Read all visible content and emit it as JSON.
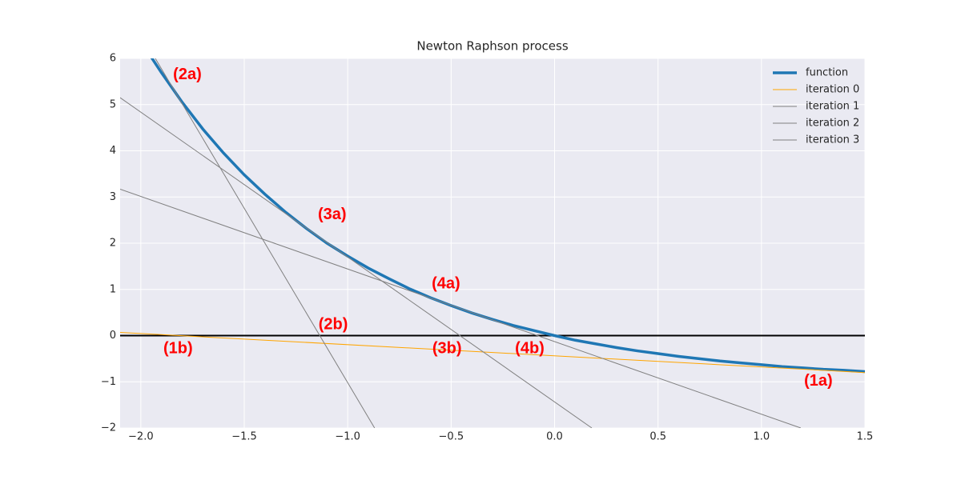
{
  "chart_data": {
    "type": "line",
    "title": "Newton Raphson process",
    "xlim": [
      -2.1,
      1.5
    ],
    "ylim": [
      -2,
      6
    ],
    "xticks": [
      {
        "value": -2.0,
        "label": "−2.0"
      },
      {
        "value": -1.5,
        "label": "−1.5"
      },
      {
        "value": -1.0,
        "label": "−1.0"
      },
      {
        "value": -0.5,
        "label": "−0.5"
      },
      {
        "value": 0.0,
        "label": "0.0"
      },
      0.5,
      {
        "value": 1.0,
        "label": "1.0"
      },
      1.5
    ],
    "yticks": [
      {
        "value": -2,
        "label": "−2"
      },
      {
        "value": -1,
        "label": "−1"
      },
      0,
      1,
      2,
      3,
      4,
      5,
      6
    ],
    "grid": true,
    "legend": "upper right",
    "axhline": 0,
    "series": [
      {
        "name": "function",
        "color": "#1f77b4",
        "x": [
          -1.95,
          -1.9,
          -1.8,
          -1.7,
          -1.6,
          -1.5,
          -1.4,
          -1.3,
          -1.2,
          -1.1,
          -1.0,
          -0.9,
          -0.8,
          -0.7,
          -0.6,
          -0.5,
          -0.4,
          -0.3,
          -0.2,
          -0.1,
          0.0,
          0.1,
          0.2,
          0.3,
          0.4,
          0.5,
          0.6,
          0.7,
          0.8,
          0.9,
          1.0,
          1.1,
          1.2,
          1.3,
          1.4,
          1.5
        ],
        "values": [
          6.03,
          5.69,
          5.05,
          4.47,
          3.95,
          3.48,
          3.06,
          2.67,
          2.32,
          2.0,
          1.72,
          1.46,
          1.23,
          1.01,
          0.82,
          0.65,
          0.49,
          0.35,
          0.22,
          0.11,
          0.0,
          -0.1,
          -0.18,
          -0.26,
          -0.33,
          -0.39,
          -0.45,
          -0.5,
          -0.55,
          -0.59,
          -0.63,
          -0.67,
          -0.7,
          -0.73,
          -0.75,
          -0.78
        ]
      },
      {
        "name": "iteration 0",
        "color": "#ffa500",
        "x": [
          -2.1,
          1.5
        ],
        "values": [
          0.07,
          -0.8
        ]
      },
      {
        "name": "iteration 1",
        "color": "#808080",
        "x": [
          -1.93,
          -0.87
        ],
        "values": [
          6,
          -2
        ]
      },
      {
        "name": "iteration 2",
        "color": "#808080",
        "x": [
          -2.1,
          0.18
        ],
        "values": [
          5.15,
          -2
        ]
      },
      {
        "name": "iteration 3",
        "color": "#808080",
        "x": [
          -2.1,
          1.19
        ],
        "values": [
          3.17,
          -2
        ]
      }
    ],
    "annotations": [
      {
        "text": "(2a)",
        "x": -1.775,
        "y": 5.64
      },
      {
        "text": "(3a)",
        "x": -1.075,
        "y": 2.61
      },
      {
        "text": "(4a)",
        "x": -0.525,
        "y": 1.11
      },
      {
        "text": "(2b)",
        "x": -1.07,
        "y": 0.23
      },
      {
        "text": "(1b)",
        "x": -1.82,
        "y": -0.29
      },
      {
        "text": "(3b)",
        "x": -0.52,
        "y": -0.29
      },
      {
        "text": "(4b)",
        "x": -0.12,
        "y": -0.29
      },
      {
        "text": "(1a)",
        "x": 1.275,
        "y": -0.99
      }
    ]
  }
}
